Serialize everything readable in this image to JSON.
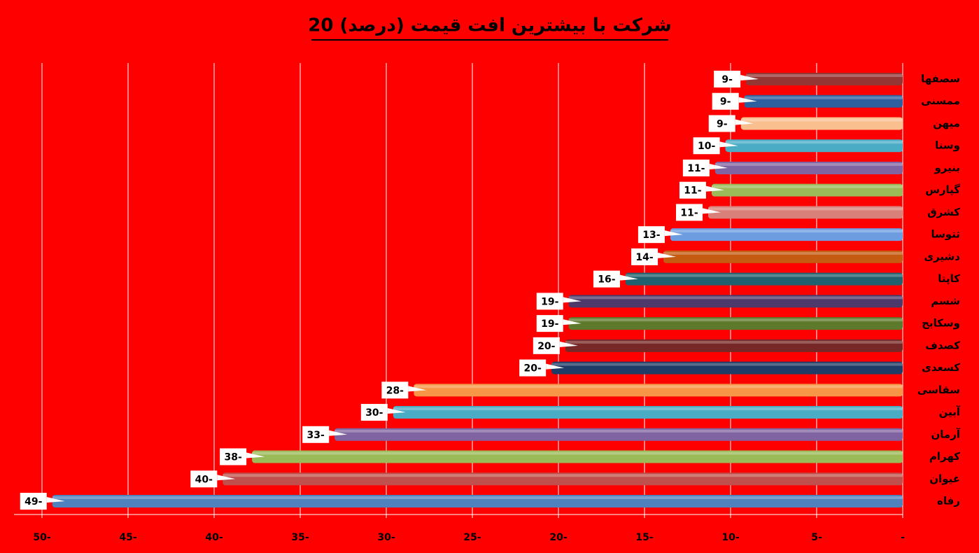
{
  "chart_data": {
    "type": "bar",
    "orientation": "horizontal",
    "title": "20 شرکت با بیشترین افت قیمت (درصد)",
    "categories": [
      "سصفها",
      "ممسنی",
      "میهن",
      "وسنا",
      "بنیرو",
      "گپارس",
      "کشرق",
      "ثتوسا",
      "دشیری",
      "کاپتا",
      "شسم",
      "وسکابح",
      "کصدف",
      "کسعدی",
      "سقاسی",
      "آبین",
      "آرمان",
      "کهرام",
      "غیوان",
      "رفاه"
    ],
    "values": [
      -9.1,
      -9.2,
      -9.4,
      -10.3,
      -10.9,
      -11.1,
      -11.3,
      -13.5,
      -13.9,
      -16.1,
      -19.4,
      -19.4,
      -19.6,
      -20.4,
      -28.4,
      -29.6,
      -33.0,
      -37.8,
      -39.5,
      -49.4
    ],
    "value_labels": [
      "9-",
      "9-",
      "9-",
      "10-",
      "11-",
      "11-",
      "11-",
      "13-",
      "14-",
      "16-",
      "19-",
      "19-",
      "20-",
      "20-",
      "28-",
      "30-",
      "33-",
      "38-",
      "40-",
      "49-"
    ],
    "colors": [
      "#943634",
      "#2e5f9e",
      "#fabf8f",
      "#4bacc6",
      "#8064a2",
      "#9bbb59",
      "#d9807a",
      "#6d9ce0",
      "#c55a11",
      "#21606e",
      "#4e3a6a",
      "#5d7a2c",
      "#772826",
      "#1f3c66",
      "#f79646",
      "#4bacc6",
      "#8064a2",
      "#9bbb59",
      "#c0504d",
      "#4f81bd"
    ],
    "xlim": [
      -50,
      0
    ],
    "xticks": [
      {
        "value": -50,
        "label": "50-"
      },
      {
        "value": -45,
        "label": "45-"
      },
      {
        "value": -40,
        "label": "40-"
      },
      {
        "value": -35,
        "label": "35-"
      },
      {
        "value": -30,
        "label": "30-"
      },
      {
        "value": -25,
        "label": "25-"
      },
      {
        "value": -20,
        "label": "20-"
      },
      {
        "value": -15,
        "label": "15-"
      },
      {
        "value": -10,
        "label": "10-"
      },
      {
        "value": -5,
        "label": "5-"
      },
      {
        "value": 0,
        "label": "-"
      }
    ],
    "grid": true
  }
}
